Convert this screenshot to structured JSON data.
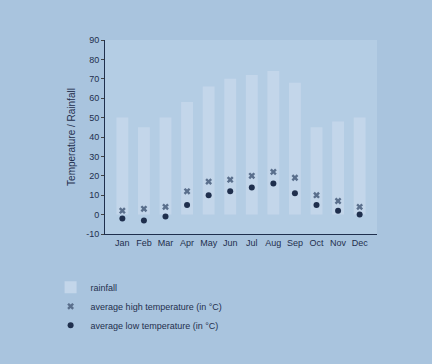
{
  "chart_data": {
    "type": "bar",
    "y_label": "Temperature / Rainfall",
    "categories": [
      "Jan",
      "Feb",
      "Mar",
      "Apr",
      "May",
      "Jun",
      "Jul",
      "Aug",
      "Sep",
      "Oct",
      "Nov",
      "Dec"
    ],
    "series": [
      {
        "name": "rainfall",
        "type": "bar",
        "color": "#c3d6ea",
        "values": [
          50,
          45,
          50,
          58,
          66,
          70,
          72,
          74,
          68,
          45,
          48,
          50
        ]
      },
      {
        "name": "average high temperature (in °C)",
        "type": "scatter",
        "marker": "x",
        "color": "#5a6f8c",
        "values": [
          2,
          3,
          4,
          12,
          17,
          18,
          20,
          22,
          19,
          10,
          7,
          4
        ]
      },
      {
        "name": "average low temperature (in °C)",
        "type": "scatter",
        "marker": "circle",
        "color": "#1f2f4d",
        "values": [
          -2,
          -3,
          -1,
          5,
          10,
          12,
          14,
          16,
          11,
          5,
          2,
          0
        ]
      }
    ],
    "ylim": [
      -10,
      90
    ],
    "yticks": [
      -10,
      0,
      10,
      20,
      30,
      40,
      50,
      60,
      70,
      80,
      90
    ],
    "grid": false,
    "legend": "bottom"
  }
}
